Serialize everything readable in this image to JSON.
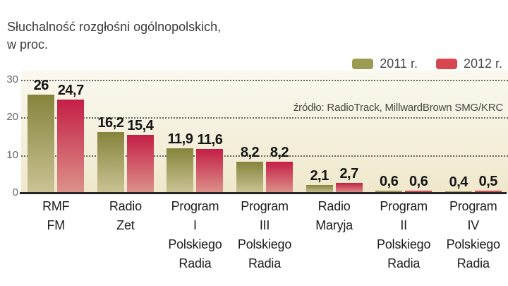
{
  "title": "Słuchalność rozgłośni ogólnopolskich,\nw proc.",
  "source": "źródło: RadioTrack, MillwardBrown SMG/KRC",
  "colors": {
    "plot_bg_top": "#fbf9ef",
    "plot_bg_bottom": "#efe8cc",
    "axis": "#262626",
    "gridline": "#4e4e4e",
    "value_label": "#151515"
  },
  "chart_data": {
    "type": "bar",
    "title": "Słuchalność rozgłośni ogólnopolskich, w proc.",
    "source": "źródło: RadioTrack, MillwardBrown SMG/KRC",
    "categories": [
      [
        "RMF",
        "FM"
      ],
      [
        "Radio",
        "Zet"
      ],
      [
        "Program",
        "I",
        "Polskiego",
        "Radia"
      ],
      [
        "Program",
        "III",
        "Polskiego",
        "Radia"
      ],
      [
        "Radio",
        "Maryja"
      ],
      [
        "Program",
        "II",
        "Polskiego",
        "Radia"
      ],
      [
        "Program",
        "IV",
        "Polskiego",
        "Radia"
      ]
    ],
    "series": [
      {
        "name": "2011 r.",
        "values": [
          26,
          16.2,
          11.9,
          8.2,
          2.1,
          0.6,
          0.4
        ],
        "legend_color": "#9c9b52",
        "color_top": "#85843c",
        "color_bottom": "#cbc395"
      },
      {
        "name": "2012 r.",
        "values": [
          24.7,
          15.4,
          11.6,
          8.2,
          2.7,
          0.6,
          0.5
        ],
        "legend_color": "#d8474f",
        "color_top": "#c41f46",
        "color_bottom": "#dc928a"
      }
    ],
    "ylim": [
      0,
      30
    ],
    "yticks": [
      0,
      10,
      20,
      30
    ],
    "grid": "horizontal dashed",
    "legend_position": "top-right",
    "value_labels": "decimal comma, bold, above bars"
  }
}
